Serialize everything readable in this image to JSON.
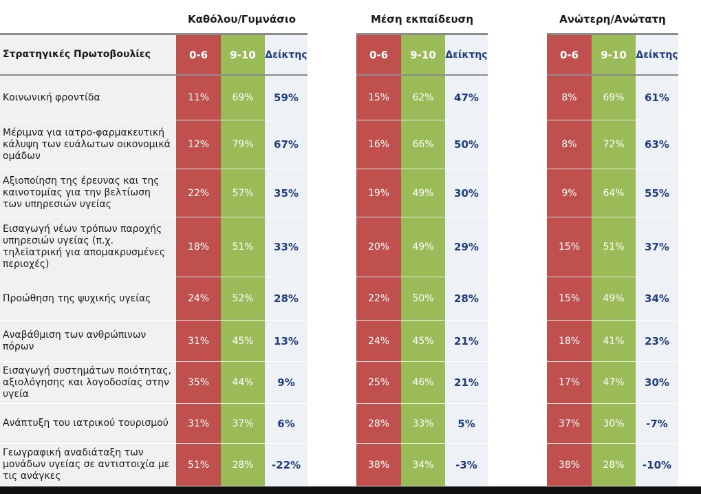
{
  "group_titles": [
    "Καθόλου/Γυμνάσιο",
    "Μέση εκπαίδευση",
    "Ανώτερη/Ανώτατη"
  ],
  "header": {
    "label": "Στρατηγικές Πρωτοβουλίες",
    "col_low": "0-6",
    "col_high": "9-10",
    "col_index": "Δείκτης"
  },
  "rows": [
    {
      "label": "Κοινωνική φροντίδα",
      "g0": [
        "11%",
        "69%",
        "59%"
      ],
      "g1": [
        "15%",
        "62%",
        "47%"
      ],
      "g2": [
        "8%",
        "69%",
        "61%"
      ]
    },
    {
      "label": "Μέριμνα για ιατρο-φαρμακευτική κάλυψη των ευάλωτων οικονομικά ομάδων",
      "g0": [
        "12%",
        "79%",
        "67%"
      ],
      "g1": [
        "16%",
        "66%",
        "50%"
      ],
      "g2": [
        "8%",
        "72%",
        "63%"
      ]
    },
    {
      "label": "Αξιοποίηση της έρευνας και της καινοτομίας για την βελτίωση των υπηρεσιών υγείας",
      "g0": [
        "22%",
        "57%",
        "35%"
      ],
      "g1": [
        "19%",
        "49%",
        "30%"
      ],
      "g2": [
        "9%",
        "64%",
        "55%"
      ]
    },
    {
      "label": "Εισαγωγή νέων τρόπων παροχής υπηρεσιών υγείας (π.χ. τηλεϊατρική για απομακρυσμένες περιοχές)",
      "g0": [
        "18%",
        "51%",
        "33%"
      ],
      "g1": [
        "20%",
        "49%",
        "29%"
      ],
      "g2": [
        "15%",
        "51%",
        "37%"
      ]
    },
    {
      "label": "Προώθηση της ψυχικής υγείας",
      "g0": [
        "24%",
        "52%",
        "28%"
      ],
      "g1": [
        "22%",
        "50%",
        "28%"
      ],
      "g2": [
        "15%",
        "49%",
        "34%"
      ]
    },
    {
      "label": "Αναβάθμιση των ανθρώπινων πόρων",
      "g0": [
        "31%",
        "45%",
        "13%"
      ],
      "g1": [
        "24%",
        "45%",
        "21%"
      ],
      "g2": [
        "18%",
        "41%",
        "23%"
      ]
    },
    {
      "label": "Εισαγωγή συστημάτων ποιότητας, αξιολόγησης και λογοδοσίας στην υγεία",
      "g0": [
        "35%",
        "44%",
        "9%"
      ],
      "g1": [
        "25%",
        "46%",
        "21%"
      ],
      "g2": [
        "17%",
        "47%",
        "30%"
      ]
    },
    {
      "label": "Ανάπτυξη του ιατρικού τουρισμού",
      "g0": [
        "31%",
        "37%",
        "6%"
      ],
      "g1": [
        "28%",
        "33%",
        "5%"
      ],
      "g2": [
        "37%",
        "30%",
        "-7%"
      ]
    },
    {
      "label": "Γεωγραφική αναδιάταξη των μονάδων υγείας σε αντιστοιχία με τις ανάγκες",
      "g0": [
        "51%",
        "28%",
        "-22%"
      ],
      "g1": [
        "38%",
        "34%",
        "-3%"
      ],
      "g2": [
        "38%",
        "28%",
        "-10%"
      ]
    }
  ],
  "colors": {
    "low": "#c0504d",
    "high": "#9bbb59",
    "index_bg": "#eef1f6",
    "index_text": "#1f3d78",
    "label_bg": "#f1f1f1"
  }
}
